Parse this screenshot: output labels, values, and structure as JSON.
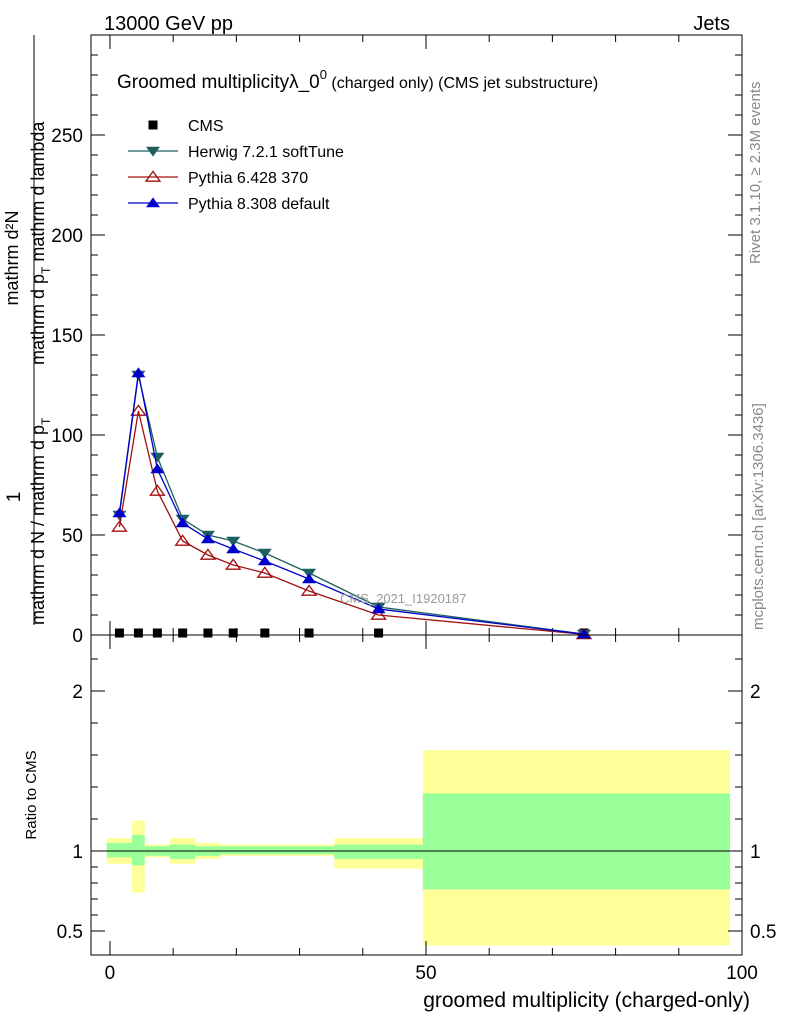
{
  "header": {
    "left": "13000 GeV pp",
    "right": "Jets"
  },
  "side_labels": {
    "rivet": "Rivet 3.1.10, ≥ 2.3M events",
    "mcplots": "mcplots.cern.ch [arXiv:1306.3436]"
  },
  "chart_data": [
    {
      "type": "line",
      "title_main": "Groomed multiplicityλ_0",
      "title_sup": "0",
      "title_rest": " (charged only) (CMS jet substructure)",
      "analysis_tag": "CMS_2021_I1920187",
      "ylabel_num": "mathrm d²N",
      "ylabel_mid": "mathrm d p",
      "ylabel_sub": "T",
      "ylabel_rest": " mathrm d lambda",
      "ylabel_left_num": "1",
      "ylabel_left_den": "mathrm d N / mathrm d p",
      "ylabel_left_sub": "T",
      "xlim": [
        -3,
        100
      ],
      "ylim": [
        0,
        300
      ],
      "yticks": [
        0,
        50,
        100,
        150,
        200,
        250
      ],
      "ytick_labels": [
        "0",
        "50",
        "100",
        "150",
        "200",
        "250"
      ],
      "legend": [
        {
          "name": "CMS",
          "color": "#000000",
          "marker": "square"
        },
        {
          "name": "Herwig 7.2.1 softTune",
          "color": "#1f5f5f",
          "marker": "tri-down"
        },
        {
          "name": "Pythia 6.428 370",
          "color": "#a01010",
          "marker": "tri-open"
        },
        {
          "name": "Pythia 8.308 default",
          "color": "#0000cc",
          "marker": "tri-up"
        }
      ],
      "series": [
        {
          "name": "CMS",
          "x": [
            1.5,
            4.5,
            7.5,
            11.5,
            15.5,
            19.5,
            24.5,
            31.5,
            42.5,
            75
          ],
          "values": [
            0,
            0,
            0,
            0,
            0,
            0,
            0,
            0,
            0,
            0
          ]
        },
        {
          "name": "Herwig 7.2.1 softTune",
          "x": [
            1.5,
            4.5,
            7.5,
            11.5,
            15.5,
            19.5,
            24.5,
            31.5,
            42.5,
            75
          ],
          "values": [
            60,
            130,
            89,
            58,
            50,
            47,
            41,
            31,
            14,
            0.5
          ]
        },
        {
          "name": "Pythia 6.428 370",
          "x": [
            1.5,
            4.5,
            7.5,
            11.5,
            15.5,
            19.5,
            24.5,
            31.5,
            42.5,
            75
          ],
          "values": [
            54,
            112,
            72,
            47,
            40,
            35,
            31,
            22,
            10,
            0.3
          ]
        },
        {
          "name": "Pythia 8.308 default",
          "x": [
            1.5,
            4.5,
            7.5,
            11.5,
            15.5,
            19.5,
            24.5,
            31.5,
            42.5,
            75
          ],
          "values": [
            61,
            131,
            83,
            56,
            48,
            43,
            37,
            28,
            13,
            0.4
          ]
        }
      ]
    },
    {
      "type": "area",
      "ylabel": "Ratio to CMS",
      "xlabel": "groomed multiplicity (charged-only)",
      "xlim": [
        -3,
        100
      ],
      "ylim": [
        0.35,
        2.35
      ],
      "xticks": [
        0,
        50,
        100
      ],
      "xtick_labels": [
        "0",
        "50",
        "100"
      ],
      "yticks": [
        0.5,
        1,
        2
      ],
      "ytick_labels": [
        "0.5",
        "1",
        "2"
      ],
      "bands": [
        {
          "x0": -0.5,
          "x1": 3.5,
          "y_inner": [
            0.96,
            1.05
          ],
          "y_outer": [
            0.92,
            1.08
          ]
        },
        {
          "x0": 3.5,
          "x1": 5.5,
          "y_inner": [
            0.91,
            1.1
          ],
          "y_outer": [
            0.74,
            1.19
          ]
        },
        {
          "x0": 5.5,
          "x1": 9.5,
          "y_inner": [
            0.97,
            1.03
          ],
          "y_outer": [
            0.96,
            1.04
          ]
        },
        {
          "x0": 9.5,
          "x1": 13.5,
          "y_inner": [
            0.95,
            1.04
          ],
          "y_outer": [
            0.92,
            1.08
          ]
        },
        {
          "x0": 13.5,
          "x1": 17.5,
          "y_inner": [
            0.97,
            1.03
          ],
          "y_outer": [
            0.95,
            1.05
          ]
        },
        {
          "x0": 17.5,
          "x1": 35.5,
          "y_inner": [
            0.98,
            1.03
          ],
          "y_outer": [
            0.97,
            1.04
          ]
        },
        {
          "x0": 35.5,
          "x1": 49.5,
          "y_inner": [
            0.95,
            1.04
          ],
          "y_outer": [
            0.89,
            1.08
          ]
        },
        {
          "x0": 49.5,
          "x1": 99.5,
          "y_inner": [
            0.76,
            1.36
          ],
          "y_outer": [
            0.41,
            1.63
          ]
        }
      ],
      "colors": {
        "inner": "#99ff99",
        "outer": "#ffff99"
      }
    }
  ]
}
